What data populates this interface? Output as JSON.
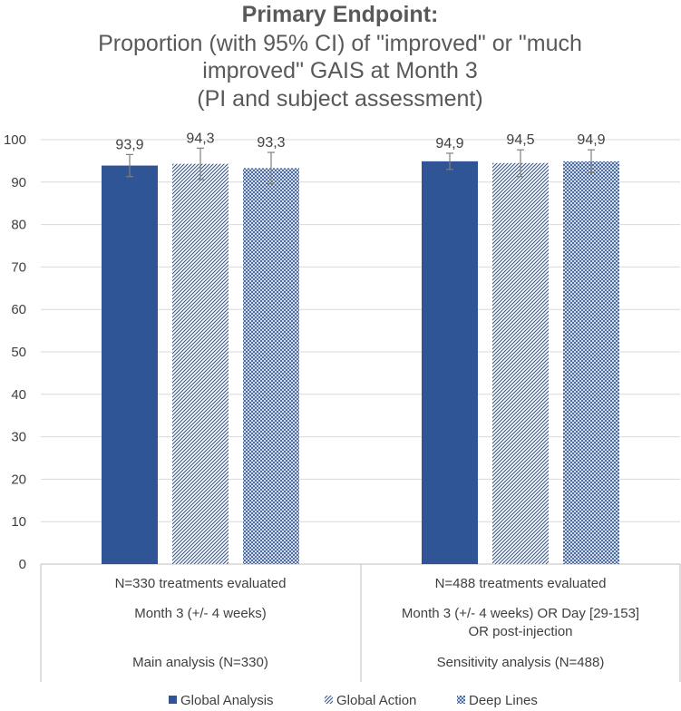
{
  "chart_data": {
    "type": "bar",
    "title_bold": "Primary Endpoint:",
    "title_lines": [
      "Proportion (with 95% CI) of \"improved\" or \"much",
      "improved\" GAIS at Month 3",
      "(PI and subject assessment)"
    ],
    "ylim": [
      0,
      100
    ],
    "yticks": [
      0,
      10,
      20,
      30,
      40,
      50,
      60,
      70,
      80,
      90,
      100
    ],
    "grid": true,
    "legend_position": "bottom",
    "groups": [
      {
        "category_lines": {
          "n_label": "N=330 treatments evaluated",
          "timepoint": [
            "Month 3 (+/- 4 weeks)"
          ],
          "analysis": "Main analysis (N=330)"
        }
      },
      {
        "category_lines": {
          "n_label": "N=488 treatments evaluated",
          "timepoint": [
            "Month 3 (+/- 4 weeks) OR Day [29-153]",
            "OR post-injection"
          ],
          "analysis": "Sensitivity analysis (N=488)"
        }
      }
    ],
    "series": [
      {
        "name": "Global Analysis",
        "pattern": "solid",
        "values": [
          93.9,
          94.9
        ],
        "labels": [
          "93,9",
          "94,9"
        ],
        "ci_low": [
          91.3,
          93.0
        ],
        "ci_high": [
          96.5,
          96.8
        ]
      },
      {
        "name": "Global Action",
        "pattern": "diagonal",
        "values": [
          94.3,
          94.5
        ],
        "labels": [
          "94,3",
          "94,5"
        ],
        "ci_low": [
          90.6,
          91.3
        ],
        "ci_high": [
          98.0,
          97.6
        ]
      },
      {
        "name": "Deep Lines",
        "pattern": "crosshatch",
        "values": [
          93.3,
          94.9
        ],
        "labels": [
          "93,3",
          "94,9"
        ],
        "ci_low": [
          89.6,
          92.2
        ],
        "ci_high": [
          97.0,
          97.6
        ]
      }
    ],
    "colors": {
      "primary": "#2f5597",
      "grid": "#d9d9d9",
      "axis": "#bfbfbf",
      "text": "#404040",
      "title": "#595959",
      "errorbar": "#7f7f7f"
    }
  }
}
